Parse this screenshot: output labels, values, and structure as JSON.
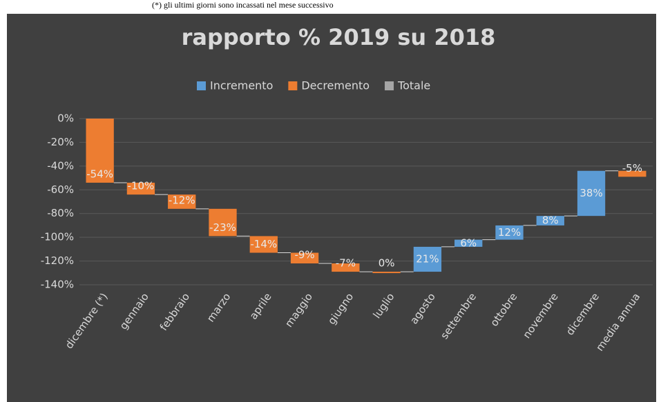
{
  "note": "(*) gli ultimi giorni sono incassati nel mese successivo",
  "chart_data": {
    "type": "waterfall",
    "title": "rapporto % 2019 su 2018",
    "legend": [
      {
        "name": "Incremento",
        "color": "#5b9bd5"
      },
      {
        "name": "Decremento",
        "color": "#ed7d31"
      },
      {
        "name": "Totale",
        "color": "#a5a5a5"
      }
    ],
    "categories": [
      "dicembre (*)",
      "gennaio",
      "febbraio",
      "marzo",
      "aprile",
      "maggio",
      "giugno",
      "luglio",
      "agosto",
      "settembre",
      "ottobre",
      "novembre",
      "dicembre",
      "media annua"
    ],
    "values": [
      -54,
      -10,
      -12,
      -23,
      -14,
      -9,
      -7,
      0,
      21,
      6,
      12,
      8,
      38,
      -5
    ],
    "value_labels": [
      "-54%",
      "-10%",
      "-12%",
      "-23%",
      "-14%",
      "-9%",
      "-7%",
      "0%",
      "21%",
      "6%",
      "12%",
      "8%",
      "38%",
      "-5%"
    ],
    "ylim": [
      -140,
      0
    ],
    "yticks": [
      {
        "value": 0,
        "label": "0%"
      },
      {
        "value": -20,
        "label": "-20%"
      },
      {
        "value": -40,
        "label": "-40%"
      },
      {
        "value": -60,
        "label": "-60%"
      },
      {
        "value": -80,
        "label": "-80%"
      },
      {
        "value": -100,
        "label": "-100%"
      },
      {
        "value": -120,
        "label": "-120%"
      },
      {
        "value": -140,
        "label": "-140%"
      }
    ],
    "grid": true
  }
}
